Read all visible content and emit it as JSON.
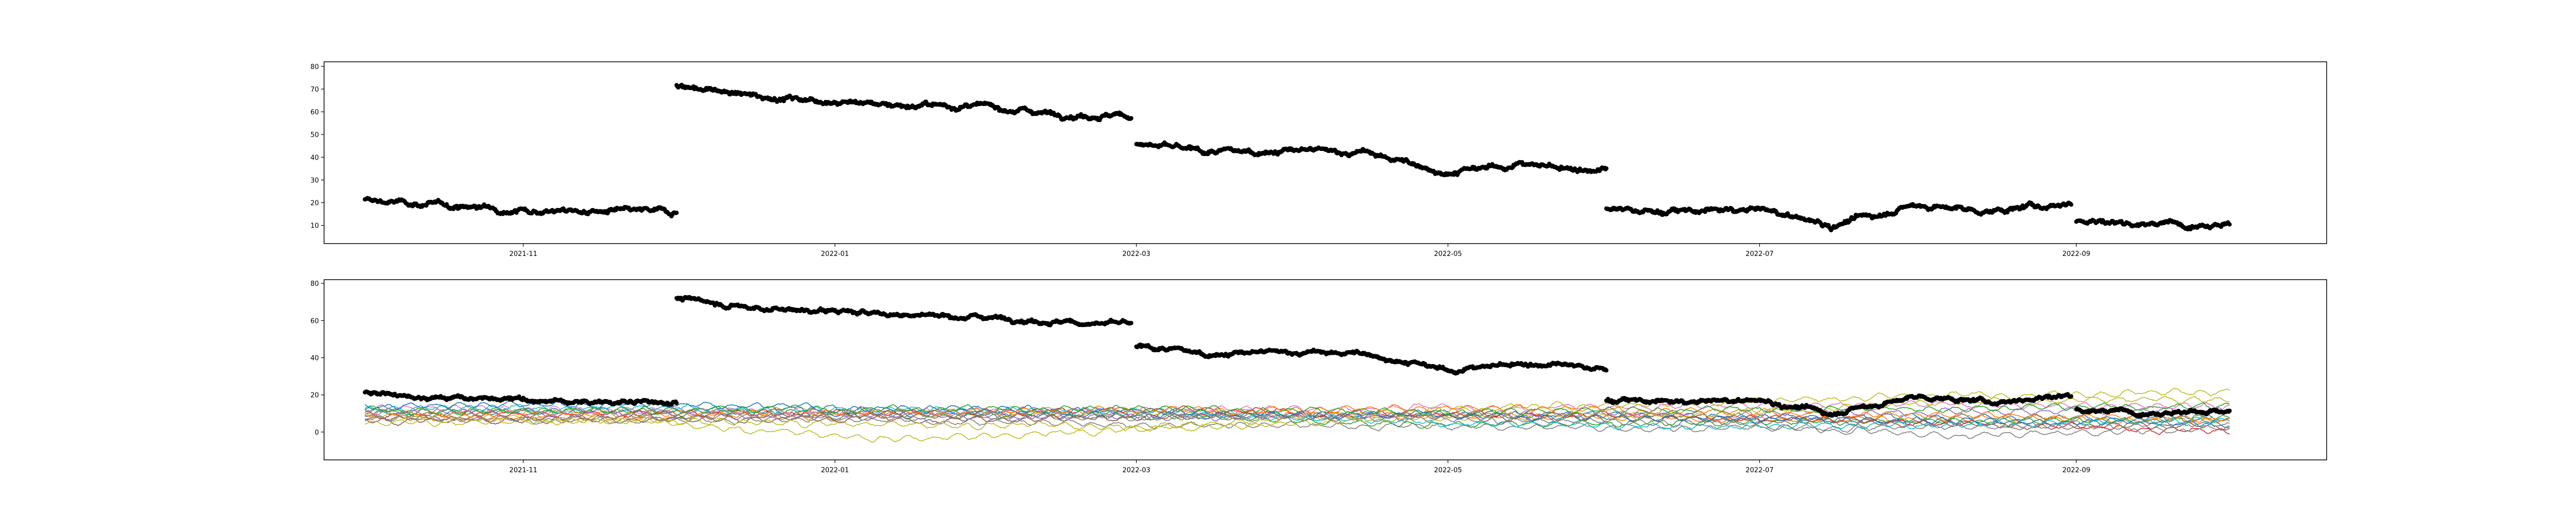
{
  "chart_data": [
    {
      "type": "scatter",
      "xlabel": "",
      "ylabel": "",
      "x_range": [
        "2021-09-23",
        "2022-10-20"
      ],
      "ylim": [
        2,
        82
      ],
      "y_ticks": [
        10,
        20,
        30,
        40,
        50,
        60,
        70,
        80
      ],
      "x_ticks": [
        "2021-11",
        "2022-01",
        "2022-03",
        "2022-05",
        "2022-07",
        "2022-09"
      ],
      "grid": false,
      "series": [
        {
          "color": "#000000",
          "segments": [
            {
              "start": "2021-10-01",
              "end": "2021-12-01",
              "points": [
                [
                  "2021-10-01",
                  21
                ],
                [
                  "2021-10-15",
                  19
                ],
                [
                  "2021-11-01",
                  17
                ],
                [
                  "2021-11-15",
                  16
                ],
                [
                  "2021-12-01",
                  16
                ]
              ]
            },
            {
              "start": "2021-12-01",
              "end": "2022-02-28",
              "points": [
                [
                  "2021-12-01",
                  72
                ],
                [
                  "2021-12-15",
                  67
                ],
                [
                  "2022-01-01",
                  65
                ],
                [
                  "2022-01-15",
                  63
                ],
                [
                  "2022-02-01",
                  62
                ],
                [
                  "2022-02-15",
                  59
                ],
                [
                  "2022-02-28",
                  58
                ]
              ]
            },
            {
              "start": "2022-03-01",
              "end": "2022-06-01",
              "points": [
                [
                  "2022-03-01",
                  46
                ],
                [
                  "2022-03-15",
                  42
                ],
                [
                  "2022-04-01",
                  43
                ],
                [
                  "2022-04-15",
                  42
                ],
                [
                  "2022-05-01",
                  33
                ],
                [
                  "2022-05-15",
                  37
                ],
                [
                  "2022-06-01",
                  34
                ]
              ]
            },
            {
              "start": "2022-06-01",
              "end": "2022-08-31",
              "points": [
                [
                  "2022-06-01",
                  17
                ],
                [
                  "2022-06-15",
                  16
                ],
                [
                  "2022-07-01",
                  17
                ],
                [
                  "2022-07-15",
                  10
                ],
                [
                  "2022-08-01",
                  19
                ],
                [
                  "2022-08-15",
                  16
                ],
                [
                  "2022-08-31",
                  20
                ]
              ]
            },
            {
              "start": "2022-09-01",
              "end": "2022-10-01",
              "points": [
                [
                  "2022-09-01",
                  12
                ],
                [
                  "2022-09-15",
                  11
                ],
                [
                  "2022-10-01",
                  11
                ]
              ]
            }
          ]
        }
      ]
    },
    {
      "type": "line",
      "xlabel": "",
      "ylabel": "",
      "x_range": [
        "2021-09-23",
        "2022-10-20"
      ],
      "ylim": [
        -15,
        82
      ],
      "y_ticks": [
        0,
        20,
        40,
        60,
        80
      ],
      "x_ticks": [
        "2021-11",
        "2022-01",
        "2022-03",
        "2022-05",
        "2022-07",
        "2022-09"
      ],
      "grid": false,
      "x_start": "2021-10-01",
      "x_end": "2022-10-01",
      "series": [
        {
          "color": "#1f77b4",
          "values": [
            10,
            11,
            10,
            9,
            10,
            9,
            8,
            7
          ]
        },
        {
          "color": "#ff7f0e",
          "values": [
            7,
            8,
            9,
            10,
            9,
            8,
            7,
            6
          ]
        },
        {
          "color": "#2ca02c",
          "values": [
            12,
            11,
            10,
            9,
            4,
            5,
            6,
            7
          ]
        },
        {
          "color": "#d62728",
          "values": [
            9,
            10,
            11,
            12,
            10,
            8,
            5,
            0
          ]
        },
        {
          "color": "#9467bd",
          "values": [
            11,
            10,
            9,
            8,
            9,
            10,
            11,
            12
          ]
        },
        {
          "color": "#8c564b",
          "values": [
            6,
            7,
            7,
            8,
            8,
            7,
            4,
            3
          ]
        },
        {
          "color": "#e377c2",
          "values": [
            13,
            12,
            11,
            12,
            13,
            14,
            15,
            14
          ]
        },
        {
          "color": "#7f7f7f",
          "values": [
            8,
            7,
            6,
            4,
            3,
            2,
            3,
            4
          ]
        },
        {
          "color": "#bcbd22",
          "values": [
            5,
            6,
            4,
            3,
            12,
            16,
            20,
            22
          ]
        },
        {
          "color": "#17becf",
          "values": [
            12,
            13,
            12,
            11,
            5,
            3,
            4,
            6
          ]
        },
        {
          "color": "#bcbd22",
          "values": [
            9,
            6,
            -4,
            2,
            8,
            10,
            16,
            18
          ]
        },
        {
          "color": "#1f77b4",
          "values": [
            14,
            15,
            13,
            11,
            9,
            7,
            6,
            5
          ]
        },
        {
          "color": "#ff7f0e",
          "values": [
            10,
            10,
            11,
            12,
            13,
            11,
            9,
            7
          ]
        },
        {
          "color": "#7f7f7f",
          "values": [
            7,
            8,
            9,
            8,
            7,
            5,
            -2,
            2
          ]
        },
        {
          "color": "#2ca02c",
          "values": [
            11,
            12,
            13,
            12,
            11,
            12,
            13,
            14
          ]
        }
      ],
      "highlight_series": {
        "color": "#000000",
        "segments": [
          {
            "start": "2021-10-01",
            "end": "2021-12-01",
            "points": [
              [
                "2021-10-01",
                21
              ],
              [
                "2021-10-15",
                19
              ],
              [
                "2021-11-01",
                17
              ],
              [
                "2021-11-15",
                16
              ],
              [
                "2021-12-01",
                16
              ]
            ]
          },
          {
            "start": "2021-12-01",
            "end": "2022-02-28",
            "points": [
              [
                "2021-12-01",
                72
              ],
              [
                "2021-12-15",
                67
              ],
              [
                "2022-01-01",
                65
              ],
              [
                "2022-01-15",
                63
              ],
              [
                "2022-02-01",
                62
              ],
              [
                "2022-02-15",
                59
              ],
              [
                "2022-02-28",
                58
              ]
            ]
          },
          {
            "start": "2022-03-01",
            "end": "2022-06-01",
            "points": [
              [
                "2022-03-01",
                46
              ],
              [
                "2022-03-15",
                42
              ],
              [
                "2022-04-01",
                43
              ],
              [
                "2022-04-15",
                42
              ],
              [
                "2022-05-01",
                33
              ],
              [
                "2022-05-15",
                37
              ],
              [
                "2022-06-01",
                34
              ]
            ]
          },
          {
            "start": "2022-06-01",
            "end": "2022-08-31",
            "points": [
              [
                "2022-06-01",
                17
              ],
              [
                "2022-06-15",
                16
              ],
              [
                "2022-07-01",
                17
              ],
              [
                "2022-07-15",
                10
              ],
              [
                "2022-08-01",
                19
              ],
              [
                "2022-08-15",
                16
              ],
              [
                "2022-08-31",
                20
              ]
            ]
          },
          {
            "start": "2022-09-01",
            "end": "2022-10-01",
            "points": [
              [
                "2022-09-01",
                12
              ],
              [
                "2022-09-15",
                11
              ],
              [
                "2022-10-01",
                11
              ]
            ]
          }
        ]
      }
    }
  ]
}
